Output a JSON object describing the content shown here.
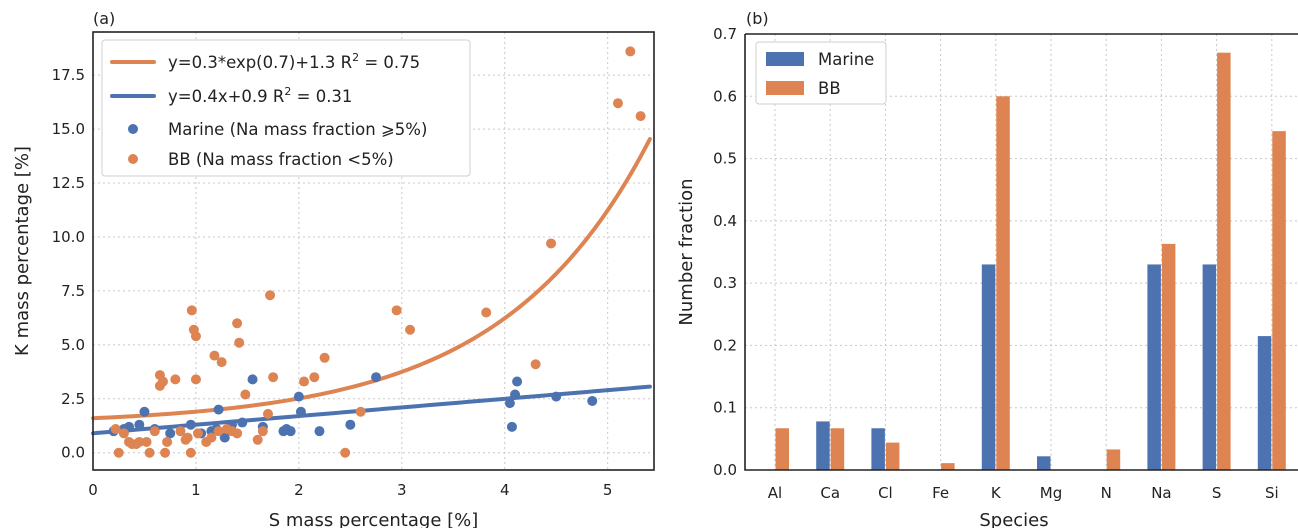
{
  "colors": {
    "marine": "#4c72b0",
    "bb": "#dd8452"
  },
  "chart_data": [
    {
      "type": "scatter",
      "panel_label": "(a)",
      "xlabel": "S mass percentage [%]",
      "ylabel": "K mass percentage [%]",
      "xlim": [
        0,
        5.45
      ],
      "ylim": [
        -0.8,
        19.5
      ],
      "xticks": [
        0,
        1,
        2,
        3,
        4,
        5
      ],
      "yticks": [
        0.0,
        2.5,
        5.0,
        7.5,
        10.0,
        12.5,
        15.0,
        17.5
      ],
      "grid": true,
      "legend_position": "top-left",
      "fits": [
        {
          "label_pre": "y=0.3*exp(0.7)+1.3 R",
          "label_sup": "2",
          "label_post": " = 0.75",
          "color": "bb",
          "kind": "exp",
          "a": 0.3,
          "b": 0.7,
          "c": 1.3
        },
        {
          "label_pre": "y=0.4x+0.9 R",
          "label_sup": "2",
          "label_post": " = 0.31",
          "color": "marine",
          "kind": "linear",
          "m": 0.4,
          "c": 0.9
        }
      ],
      "series": [
        {
          "name": "Marine (Na mass fraction  ⩾5%)",
          "color": "marine",
          "points": [
            [
              0.2,
              1.0
            ],
            [
              0.3,
              1.1
            ],
            [
              0.35,
              1.2
            ],
            [
              0.45,
              1.3
            ],
            [
              0.5,
              1.9
            ],
            [
              0.6,
              1.1
            ],
            [
              0.75,
              0.9
            ],
            [
              0.95,
              1.3
            ],
            [
              1.05,
              0.9
            ],
            [
              1.15,
              1.0
            ],
            [
              1.2,
              1.1
            ],
            [
              1.22,
              2.0
            ],
            [
              1.28,
              0.7
            ],
            [
              1.35,
              1.3
            ],
            [
              1.45,
              1.4
            ],
            [
              1.55,
              3.4
            ],
            [
              1.65,
              1.2
            ],
            [
              1.85,
              1.0
            ],
            [
              1.88,
              1.1
            ],
            [
              1.92,
              1.0
            ],
            [
              2.0,
              2.6
            ],
            [
              2.02,
              1.9
            ],
            [
              2.2,
              1.0
            ],
            [
              2.5,
              1.3
            ],
            [
              2.75,
              3.5
            ],
            [
              4.05,
              2.3
            ],
            [
              4.07,
              1.2
            ],
            [
              4.1,
              2.7
            ],
            [
              4.12,
              3.3
            ],
            [
              4.5,
              2.6
            ],
            [
              4.85,
              2.4
            ]
          ]
        },
        {
          "name": "BB (Na mass fraction <5%)",
          "color": "bb",
          "points": [
            [
              0.22,
              1.1
            ],
            [
              0.25,
              0.0
            ],
            [
              0.3,
              0.9
            ],
            [
              0.35,
              0.5
            ],
            [
              0.38,
              0.4
            ],
            [
              0.42,
              0.4
            ],
            [
              0.45,
              0.5
            ],
            [
              0.52,
              0.5
            ],
            [
              0.55,
              0.0
            ],
            [
              0.6,
              1.0
            ],
            [
              0.65,
              3.1
            ],
            [
              0.65,
              3.6
            ],
            [
              0.68,
              3.3
            ],
            [
              0.7,
              0.0
            ],
            [
              0.72,
              0.5
            ],
            [
              0.8,
              3.4
            ],
            [
              0.85,
              1.0
            ],
            [
              0.9,
              0.6
            ],
            [
              0.92,
              0.7
            ],
            [
              0.95,
              0.0
            ],
            [
              0.96,
              6.6
            ],
            [
              0.98,
              5.7
            ],
            [
              1.0,
              5.4
            ],
            [
              1.0,
              3.4
            ],
            [
              1.02,
              0.9
            ],
            [
              1.1,
              0.5
            ],
            [
              1.15,
              0.7
            ],
            [
              1.18,
              4.5
            ],
            [
              1.22,
              1.0
            ],
            [
              1.25,
              4.2
            ],
            [
              1.3,
              1.1
            ],
            [
              1.35,
              1.0
            ],
            [
              1.4,
              0.9
            ],
            [
              1.4,
              6.0
            ],
            [
              1.42,
              5.1
            ],
            [
              1.48,
              2.7
            ],
            [
              1.6,
              0.6
            ],
            [
              1.65,
              1.0
            ],
            [
              1.7,
              1.8
            ],
            [
              1.72,
              7.3
            ],
            [
              1.75,
              3.5
            ],
            [
              2.05,
              3.3
            ],
            [
              2.15,
              3.5
            ],
            [
              2.25,
              4.4
            ],
            [
              2.45,
              0.0
            ],
            [
              2.6,
              1.9
            ],
            [
              2.95,
              6.6
            ],
            [
              3.08,
              5.7
            ],
            [
              3.82,
              6.5
            ],
            [
              4.3,
              4.1
            ],
            [
              4.45,
              9.7
            ],
            [
              5.1,
              16.2
            ],
            [
              5.22,
              18.6
            ],
            [
              5.32,
              15.6
            ]
          ]
        }
      ]
    },
    {
      "type": "bar",
      "panel_label": "(b)",
      "xlabel": "Species",
      "ylabel": "Number fraction",
      "ylim": [
        0,
        0.7
      ],
      "yticks": [
        0.0,
        0.1,
        0.2,
        0.3,
        0.4,
        0.5,
        0.6,
        0.7
      ],
      "grid": true,
      "legend_position": "top-left",
      "categories": [
        "Al",
        "Ca",
        "Cl",
        "Fe",
        "K",
        "Mg",
        "N",
        "Na",
        "S",
        "Si"
      ],
      "series": [
        {
          "name": "Marine",
          "color": "marine",
          "values": [
            0.0,
            0.078,
            0.067,
            0.0,
            0.33,
            0.022,
            0.0,
            0.33,
            0.33,
            0.215
          ]
        },
        {
          "name": "BB",
          "color": "bb",
          "values": [
            0.067,
            0.067,
            0.044,
            0.011,
            0.6,
            0.0,
            0.033,
            0.363,
            0.67,
            0.544
          ]
        }
      ]
    }
  ]
}
